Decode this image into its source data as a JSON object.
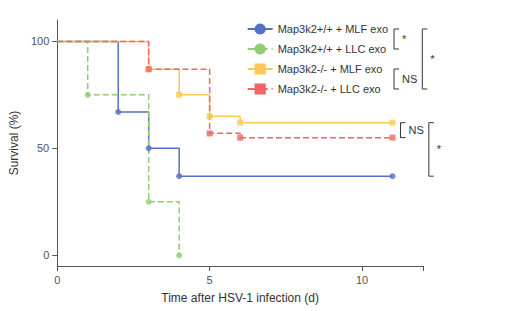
{
  "chart_data": {
    "type": "line",
    "xlabel": "Time after HSV-1 infection (d)",
    "ylabel": "Survival (%)",
    "xlim": [
      0,
      12
    ],
    "ylim": [
      -5,
      110
    ],
    "xticks": [
      0,
      5,
      10
    ],
    "yticks": [
      0,
      50,
      100
    ],
    "grid": false,
    "legend": "upper right",
    "series": [
      {
        "name": "Map3k2+/+ + MLF exo",
        "line_style": "solid",
        "marker": "circle",
        "x": [
          0,
          2,
          2,
          3,
          3,
          4,
          4,
          11
        ],
        "values": [
          100,
          100,
          67,
          67,
          50,
          50,
          37,
          37
        ],
        "marker_x": [
          2,
          3,
          4,
          11
        ],
        "marker_values": [
          67,
          50,
          37,
          37
        ]
      },
      {
        "name": "Map3k2+/+ + LLC exo",
        "line_style": "dashed",
        "marker": "circle",
        "x": [
          0,
          1,
          1,
          3,
          3,
          4,
          4
        ],
        "values": [
          100,
          100,
          75,
          75,
          25,
          25,
          0
        ],
        "marker_x": [
          1,
          3,
          4
        ],
        "marker_values": [
          75,
          25,
          0
        ]
      },
      {
        "name": "Map3k2-/- + MLF exo",
        "line_style": "solid",
        "marker": "square",
        "x": [
          0,
          3,
          3,
          4,
          4,
          5,
          5,
          6,
          6,
          11
        ],
        "values": [
          100,
          100,
          87,
          87,
          75,
          75,
          65,
          65,
          62,
          62
        ],
        "marker_x": [
          3,
          4,
          5,
          6,
          11
        ],
        "marker_values": [
          87,
          75,
          65,
          62,
          62
        ]
      },
      {
        "name": "Map3k2-/- + LLC exo",
        "line_style": "dashed",
        "marker": "square",
        "x": [
          0,
          3,
          3,
          5,
          5,
          6,
          6,
          11
        ],
        "values": [
          100,
          100,
          87,
          87,
          57,
          57,
          55,
          55
        ],
        "marker_x": [
          3,
          5,
          6,
          11
        ],
        "marker_values": [
          87,
          57,
          55,
          55
        ]
      }
    ],
    "brackets": [
      {
        "text": "NS",
        "y1": 62,
        "y2": 55
      },
      {
        "text": "*",
        "y1": 62,
        "y2": 37
      }
    ],
    "legend_brackets": [
      {
        "text": "*",
        "series": [
          "Map3k2+/+ + MLF exo",
          "Map3k2+/+ + LLC exo"
        ]
      },
      {
        "text": "NS",
        "series": [
          "Map3k2-/- + MLF exo",
          "Map3k2-/- + LLC exo"
        ]
      },
      {
        "text": "*",
        "series": [
          "Map3k2+/+ + MLF exo",
          "Map3k2-/- + LLC exo"
        ]
      }
    ]
  }
}
